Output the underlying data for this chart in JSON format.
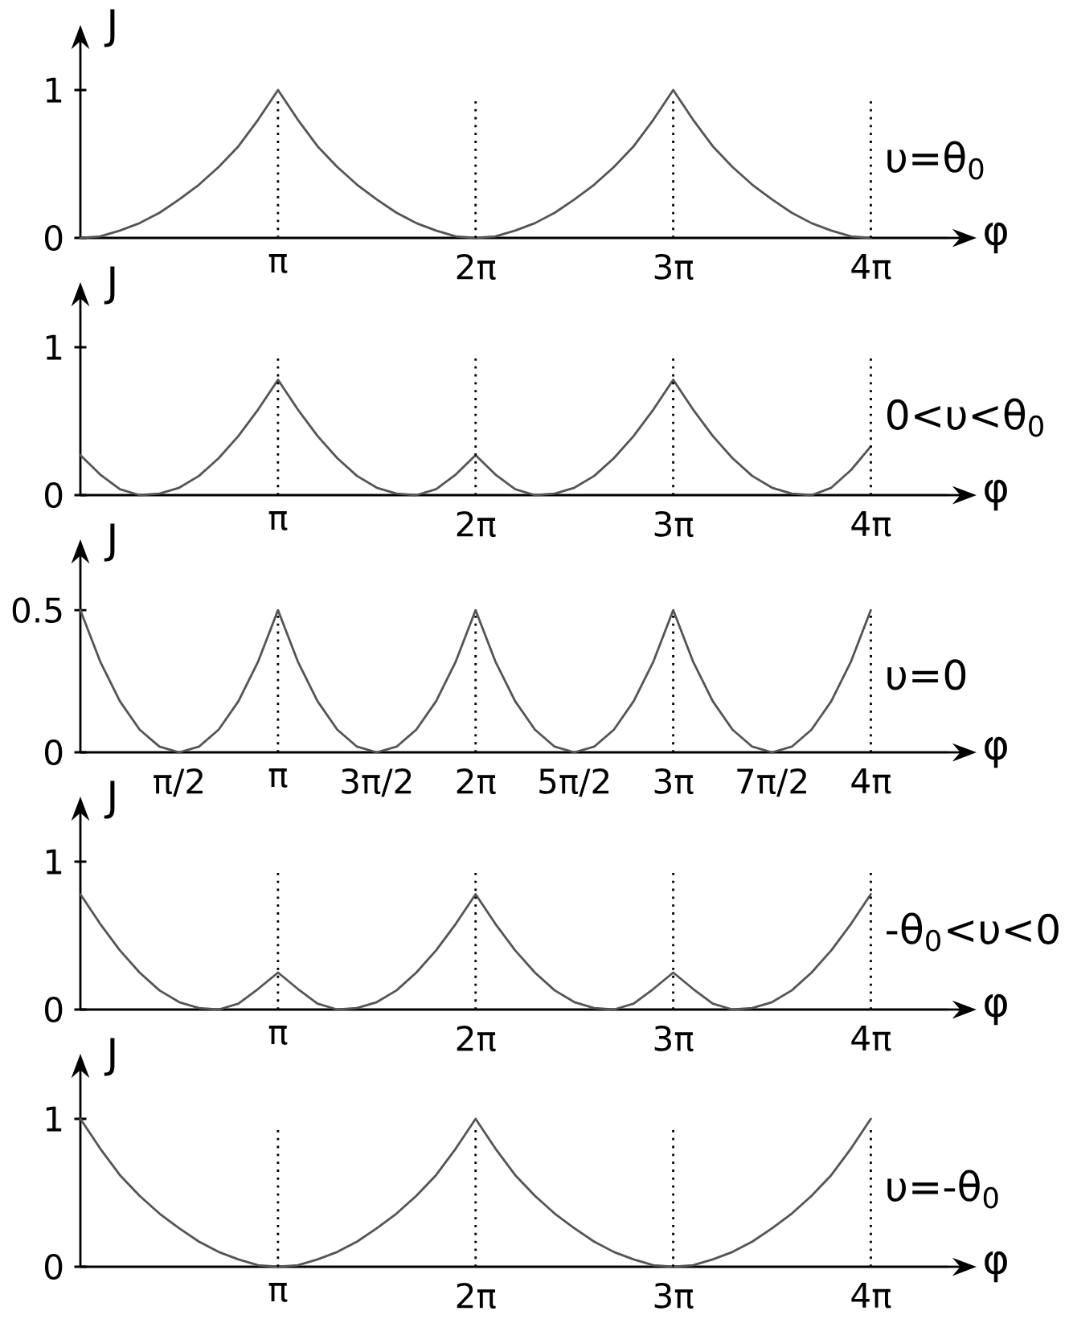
{
  "chart_data": [
    {
      "type": "line",
      "xlabel": "φ",
      "ylabel": "J",
      "xlim": [
        0,
        13.8
      ],
      "ylim": [
        0,
        1.25
      ],
      "xticks": [
        {
          "value": 3.1416,
          "label": "π"
        },
        {
          "value": 6.2832,
          "label": "2π"
        },
        {
          "value": 9.4248,
          "label": "3π"
        },
        {
          "value": 12.5664,
          "label": "4π"
        }
      ],
      "yticks": [
        0,
        1
      ],
      "x": [
        0,
        0.314,
        0.628,
        0.942,
        1.257,
        1.571,
        1.885,
        2.199,
        2.513,
        2.827,
        3.142,
        3.456,
        3.77,
        4.084,
        4.398,
        4.712,
        5.027,
        5.341,
        5.655,
        5.969,
        6.283,
        6.597,
        6.912,
        7.226,
        7.54,
        7.854,
        8.168,
        8.482,
        8.796,
        9.111,
        9.425,
        9.739,
        10.053,
        10.367,
        10.681,
        10.996,
        11.31,
        11.624,
        11.938,
        12.252,
        12.566
      ],
      "series": [
        {
          "color": "#555555",
          "values": [
            0,
            0.01,
            0.05,
            0.1,
            0.17,
            0.26,
            0.36,
            0.48,
            0.62,
            0.8,
            1,
            0.8,
            0.62,
            0.48,
            0.36,
            0.26,
            0.17,
            0.1,
            0.05,
            0.01,
            0,
            0.01,
            0.05,
            0.1,
            0.17,
            0.26,
            0.36,
            0.48,
            0.62,
            0.8,
            1,
            0.8,
            0.62,
            0.48,
            0.36,
            0.26,
            0.17,
            0.1,
            0.05,
            0.01,
            0
          ]
        }
      ],
      "ref_lines": [
        {
          "axis": "x",
          "value": 3.1416,
          "line_style": "dotted"
        },
        {
          "axis": "x",
          "value": 6.2832,
          "line_style": "dotted"
        },
        {
          "axis": "x",
          "value": 9.4248,
          "line_style": "dotted"
        },
        {
          "axis": "x",
          "value": 12.5664,
          "line_style": "dotted"
        }
      ],
      "annotations": [
        "υ=θ$_{0}$"
      ]
    },
    {
      "type": "line",
      "xlabel": "φ",
      "ylabel": "J",
      "xlim": [
        0,
        13.8
      ],
      "ylim": [
        0,
        1.25
      ],
      "xticks": [
        {
          "value": 3.1416,
          "label": "π"
        },
        {
          "value": 6.2832,
          "label": "2π"
        },
        {
          "value": 9.4248,
          "label": "3π"
        },
        {
          "value": 12.5664,
          "label": "4π"
        }
      ],
      "yticks": [
        0,
        1
      ],
      "x": [
        0,
        0.314,
        0.628,
        0.942,
        1.257,
        1.571,
        1.885,
        2.199,
        2.513,
        2.827,
        3.142,
        3.456,
        3.77,
        4.084,
        4.398,
        4.712,
        5.027,
        5.341,
        5.655,
        5.969,
        6.283,
        6.597,
        6.912,
        7.226,
        7.54,
        7.854,
        8.168,
        8.482,
        8.796,
        9.111,
        9.425,
        9.739,
        10.053,
        10.367,
        10.681,
        10.996,
        11.31,
        11.624,
        11.938,
        12.252,
        12.566
      ],
      "series": [
        {
          "color": "#555555",
          "values": [
            0.27,
            0.14,
            0.04,
            0,
            0.01,
            0.05,
            0.13,
            0.25,
            0.4,
            0.58,
            0.78,
            0.58,
            0.4,
            0.25,
            0.13,
            0.05,
            0.01,
            0,
            0.04,
            0.14,
            0.27,
            0.14,
            0.04,
            0,
            0.01,
            0.05,
            0.13,
            0.25,
            0.4,
            0.58,
            0.78,
            0.58,
            0.4,
            0.25,
            0.13,
            0.05,
            0.01,
            0,
            0.05,
            0.17,
            0.33
          ]
        }
      ],
      "ref_lines": [
        {
          "axis": "x",
          "value": 3.1416,
          "line_style": "dotted"
        },
        {
          "axis": "x",
          "value": 6.2832,
          "line_style": "dotted"
        },
        {
          "axis": "x",
          "value": 9.4248,
          "line_style": "dotted"
        },
        {
          "axis": "x",
          "value": 12.5664,
          "line_style": "dotted"
        }
      ],
      "annotations": [
        "0<υ<θ$_{0}$"
      ]
    },
    {
      "type": "line",
      "xlabel": "φ",
      "ylabel": "J",
      "xlim": [
        0,
        13.8
      ],
      "ylim": [
        0,
        0.65
      ],
      "xticks": [
        {
          "value": 1.5708,
          "label": "π/2"
        },
        {
          "value": 3.1416,
          "label": "π"
        },
        {
          "value": 4.7124,
          "label": "3π/2"
        },
        {
          "value": 6.2832,
          "label": "2π"
        },
        {
          "value": 7.854,
          "label": "5π/2"
        },
        {
          "value": 9.4248,
          "label": "3π"
        },
        {
          "value": 10.9956,
          "label": "7π/2"
        },
        {
          "value": 12.5664,
          "label": "4π"
        }
      ],
      "yticks": [
        0,
        0.5
      ],
      "x": [
        0,
        0.314,
        0.628,
        0.942,
        1.257,
        1.571,
        1.885,
        2.199,
        2.513,
        2.827,
        3.142,
        3.456,
        3.77,
        4.084,
        4.398,
        4.712,
        5.027,
        5.341,
        5.655,
        5.969,
        6.283,
        6.597,
        6.912,
        7.226,
        7.54,
        7.854,
        8.168,
        8.482,
        8.796,
        9.111,
        9.425,
        9.739,
        10.053,
        10.367,
        10.681,
        10.996,
        11.31,
        11.624,
        11.938,
        12.252,
        12.566
      ],
      "series": [
        {
          "color": "#555555",
          "values": [
            0.5,
            0.32,
            0.18,
            0.08,
            0.02,
            0,
            0.02,
            0.08,
            0.18,
            0.32,
            0.5,
            0.32,
            0.18,
            0.08,
            0.02,
            0,
            0.02,
            0.08,
            0.18,
            0.32,
            0.5,
            0.32,
            0.18,
            0.08,
            0.02,
            0,
            0.02,
            0.08,
            0.18,
            0.32,
            0.5,
            0.32,
            0.18,
            0.08,
            0.02,
            0,
            0.02,
            0.08,
            0.18,
            0.32,
            0.5
          ]
        }
      ],
      "ref_lines": [
        {
          "axis": "x",
          "value": 3.1416,
          "line_style": "dotted"
        },
        {
          "axis": "x",
          "value": 6.2832,
          "line_style": "dotted"
        },
        {
          "axis": "x",
          "value": 9.4248,
          "line_style": "dotted"
        },
        {
          "axis": "x",
          "value": 12.5664,
          "line_style": "dotted"
        }
      ],
      "annotations": [
        "υ=0"
      ]
    },
    {
      "type": "line",
      "xlabel": "φ",
      "ylabel": "J",
      "xlim": [
        0,
        13.8
      ],
      "ylim": [
        0,
        1.25
      ],
      "xticks": [
        {
          "value": 3.1416,
          "label": "π"
        },
        {
          "value": 6.2832,
          "label": "2π"
        },
        {
          "value": 9.4248,
          "label": "3π"
        },
        {
          "value": 12.5664,
          "label": "4π"
        }
      ],
      "yticks": [
        0,
        1
      ],
      "x": [
        0,
        0.314,
        0.628,
        0.942,
        1.257,
        1.571,
        1.885,
        2.199,
        2.513,
        2.827,
        3.142,
        3.456,
        3.77,
        4.084,
        4.398,
        4.712,
        5.027,
        5.341,
        5.655,
        5.969,
        6.283,
        6.597,
        6.912,
        7.226,
        7.54,
        7.854,
        8.168,
        8.482,
        8.796,
        9.111,
        9.425,
        9.739,
        10.053,
        10.367,
        10.681,
        10.996,
        11.31,
        11.624,
        11.938,
        12.252,
        12.566
      ],
      "series": [
        {
          "color": "#555555",
          "values": [
            0.78,
            0.58,
            0.4,
            0.25,
            0.13,
            0.05,
            0.01,
            0,
            0.04,
            0.14,
            0.25,
            0.14,
            0.04,
            0,
            0.01,
            0.05,
            0.13,
            0.25,
            0.4,
            0.58,
            0.78,
            0.58,
            0.4,
            0.25,
            0.13,
            0.05,
            0.01,
            0,
            0.04,
            0.14,
            0.25,
            0.14,
            0.04,
            0,
            0.01,
            0.05,
            0.13,
            0.25,
            0.4,
            0.58,
            0.78
          ]
        }
      ],
      "ref_lines": [
        {
          "axis": "x",
          "value": 3.1416,
          "line_style": "dotted"
        },
        {
          "axis": "x",
          "value": 6.2832,
          "line_style": "dotted"
        },
        {
          "axis": "x",
          "value": 9.4248,
          "line_style": "dotted"
        },
        {
          "axis": "x",
          "value": 12.5664,
          "line_style": "dotted"
        }
      ],
      "annotations": [
        "-θ$_{0}$<υ<0"
      ]
    },
    {
      "type": "line",
      "xlabel": "φ",
      "ylabel": "J",
      "xlim": [
        0,
        13.8
      ],
      "ylim": [
        0,
        1.25
      ],
      "xticks": [
        {
          "value": 3.1416,
          "label": "π"
        },
        {
          "value": 6.2832,
          "label": "2π"
        },
        {
          "value": 9.4248,
          "label": "3π"
        },
        {
          "value": 12.5664,
          "label": "4π"
        }
      ],
      "yticks": [
        0,
        1
      ],
      "x": [
        0,
        0.314,
        0.628,
        0.942,
        1.257,
        1.571,
        1.885,
        2.199,
        2.513,
        2.827,
        3.142,
        3.456,
        3.77,
        4.084,
        4.398,
        4.712,
        5.027,
        5.341,
        5.655,
        5.969,
        6.283,
        6.597,
        6.912,
        7.226,
        7.54,
        7.854,
        8.168,
        8.482,
        8.796,
        9.111,
        9.425,
        9.739,
        10.053,
        10.367,
        10.681,
        10.996,
        11.31,
        11.624,
        11.938,
        12.252,
        12.566
      ],
      "series": [
        {
          "color": "#555555",
          "values": [
            1,
            0.8,
            0.62,
            0.48,
            0.36,
            0.26,
            0.17,
            0.1,
            0.05,
            0.01,
            0,
            0.01,
            0.05,
            0.1,
            0.17,
            0.26,
            0.36,
            0.48,
            0.62,
            0.8,
            1,
            0.8,
            0.62,
            0.48,
            0.36,
            0.26,
            0.17,
            0.1,
            0.05,
            0.01,
            0,
            0.01,
            0.05,
            0.1,
            0.17,
            0.26,
            0.36,
            0.48,
            0.62,
            0.8,
            1
          ]
        }
      ],
      "ref_lines": [
        {
          "axis": "x",
          "value": 3.1416,
          "line_style": "dotted"
        },
        {
          "axis": "x",
          "value": 6.2832,
          "line_style": "dotted"
        },
        {
          "axis": "x",
          "value": 9.4248,
          "line_style": "dotted"
        },
        {
          "axis": "x",
          "value": 12.5664,
          "line_style": "dotted"
        }
      ],
      "annotations": [
        "υ=-θ$_{0}$"
      ]
    }
  ]
}
